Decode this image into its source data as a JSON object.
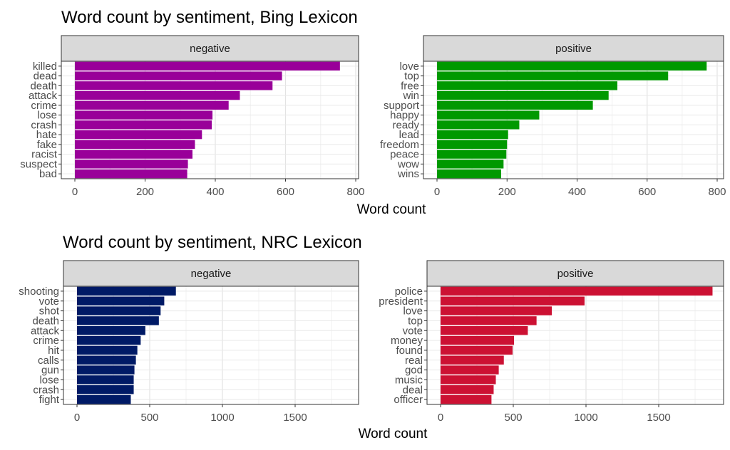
{
  "chart_data": [
    {
      "type": "bar",
      "orientation": "horizontal",
      "title": "Word count by sentiment, Bing Lexicon",
      "xlabel": "Word count",
      "ylabel": "",
      "grid": true,
      "xlim": [
        0,
        800
      ],
      "xticks": [
        0,
        200,
        400,
        600,
        800
      ],
      "facets": [
        {
          "strip": "negative",
          "color": "#990099",
          "categories": [
            "killed",
            "dead",
            "death",
            "attack",
            "crime",
            "lose",
            "crash",
            "hate",
            "fake",
            "racist",
            "suspect",
            "bad"
          ],
          "values": [
            755,
            590,
            563,
            470,
            438,
            392,
            390,
            362,
            342,
            335,
            322,
            320
          ]
        },
        {
          "strip": "positive",
          "color": "#009900",
          "categories": [
            "love",
            "top",
            "free",
            "win",
            "support",
            "happy",
            "ready",
            "lead",
            "freedom",
            "peace",
            "wow",
            "wins"
          ],
          "values": [
            770,
            660,
            515,
            490,
            445,
            292,
            235,
            203,
            200,
            198,
            190,
            183
          ]
        }
      ]
    },
    {
      "type": "bar",
      "orientation": "horizontal",
      "title": "Word count by sentiment, NRC Lexicon",
      "xlabel": "Word count",
      "ylabel": "",
      "grid": true,
      "xlim": [
        0,
        1900
      ],
      "xticks": [
        0,
        500,
        1000,
        1500
      ],
      "facets": [
        {
          "strip": "negative",
          "color": "#001a66",
          "categories": [
            "shooting",
            "vote",
            "shot",
            "death",
            "attack",
            "crime",
            "hit",
            "calls",
            "gun",
            "lose",
            "crash",
            "fight"
          ],
          "values": [
            680,
            600,
            575,
            563,
            470,
            438,
            415,
            405,
            395,
            390,
            390,
            370
          ]
        },
        {
          "strip": "positive",
          "color": "#cc1133",
          "categories": [
            "police",
            "president",
            "love",
            "top",
            "vote",
            "money",
            "found",
            "real",
            "god",
            "music",
            "deal",
            "officer"
          ],
          "values": [
            1870,
            990,
            765,
            660,
            600,
            505,
            495,
            435,
            400,
            380,
            365,
            350
          ]
        }
      ]
    }
  ]
}
